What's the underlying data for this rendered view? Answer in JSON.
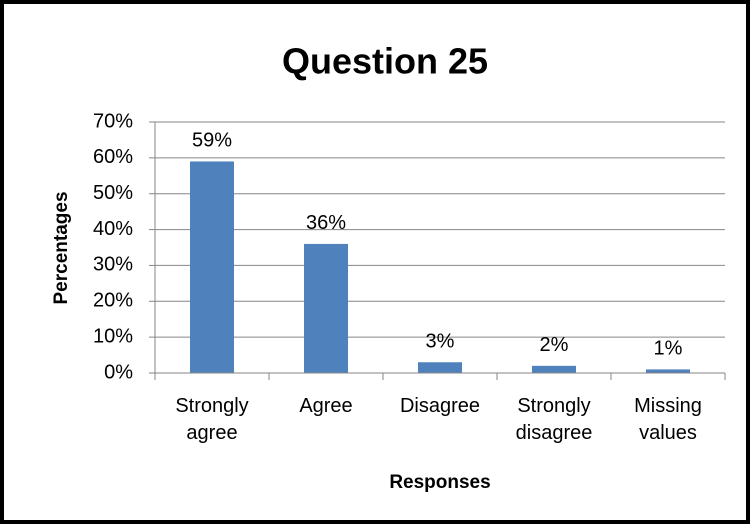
{
  "chart_data": {
    "type": "bar",
    "title": "Question 25",
    "x_label": "Responses",
    "y_label": "Percentages",
    "categories": [
      "Strongly agree",
      "Agree",
      "Disagree",
      "Strongly disagree",
      "Missing values"
    ],
    "values": [
      59,
      36,
      3,
      2,
      1
    ],
    "value_labels": [
      "59%",
      "36%",
      "3%",
      "2%",
      "1%"
    ],
    "color": "#4f81bd",
    "ylim": [
      0,
      70
    ],
    "yticks": [
      {
        "value": 0,
        "label": "0%"
      },
      {
        "value": 10,
        "label": "10%"
      },
      {
        "value": 20,
        "label": "20%"
      },
      {
        "value": 30,
        "label": "30%"
      },
      {
        "value": 40,
        "label": "40%"
      },
      {
        "value": 50,
        "label": "50%"
      },
      {
        "value": 60,
        "label": "60%"
      },
      {
        "value": 70,
        "label": "70%"
      }
    ],
    "grid": true
  }
}
